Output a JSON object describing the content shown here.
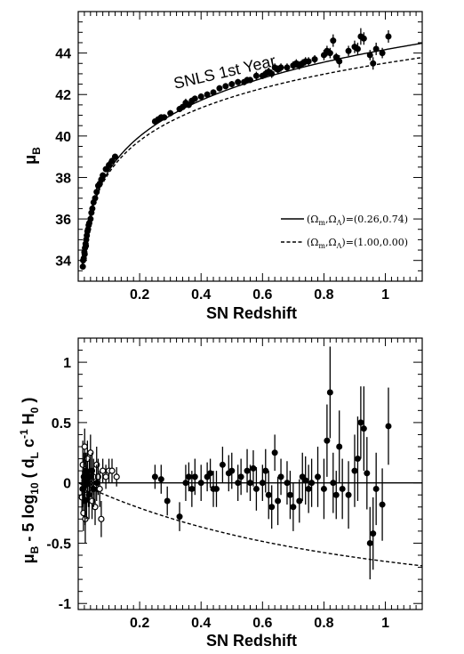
{
  "chart_data": [
    {
      "type": "scatter",
      "title": "",
      "xlabel": "SN Redshift",
      "ylabel_parts": {
        "base": "μ",
        "sub": "B"
      },
      "xlim": [
        0.0,
        1.12
      ],
      "ylim": [
        33.0,
        46.0
      ],
      "xticks": [
        0.2,
        0.4,
        0.6,
        0.8,
        1.0
      ],
      "xtick_labels": [
        "0.2",
        "0.4",
        "0.6",
        "0.8",
        "1"
      ],
      "yticks": [
        34,
        36,
        38,
        40,
        42,
        44
      ],
      "ytick_labels": [
        "34",
        "36",
        "38",
        "40",
        "42",
        "44"
      ],
      "annotation": "SNLS 1st Year",
      "legend_position": "lower-right",
      "legend": [
        {
          "style": "solid",
          "params": "(Ω",
          "sub1": "m",
          "comma": ",Ω",
          "sub2": "Λ",
          "value": ")=(0.26,0.74)"
        },
        {
          "style": "dashed",
          "params": "(Ω",
          "sub1": "m",
          "comma": ",Ω",
          "sub2": "Λ",
          "value": ")=(1.00,0.00)"
        }
      ],
      "series": [
        {
          "name": "(Ωm,ΩΛ)=(0.26,0.74)",
          "style": "solid",
          "omega_m": 0.26,
          "omega_l": 0.74
        },
        {
          "name": "(Ωm,ΩΛ)=(1.00,0.00)",
          "style": "dashed",
          "omega_m": 1.0,
          "omega_l": 0.0
        }
      ],
      "points": {
        "x": [
          0.015,
          0.016,
          0.018,
          0.02,
          0.021,
          0.022,
          0.024,
          0.025,
          0.026,
          0.028,
          0.03,
          0.032,
          0.034,
          0.036,
          0.04,
          0.043,
          0.046,
          0.05,
          0.055,
          0.06,
          0.065,
          0.07,
          0.075,
          0.08,
          0.09,
          0.1,
          0.11,
          0.12,
          0.25,
          0.26,
          0.27,
          0.28,
          0.3,
          0.33,
          0.34,
          0.35,
          0.36,
          0.37,
          0.38,
          0.4,
          0.42,
          0.44,
          0.46,
          0.48,
          0.5,
          0.52,
          0.54,
          0.55,
          0.56,
          0.58,
          0.6,
          0.61,
          0.62,
          0.63,
          0.64,
          0.65,
          0.66,
          0.68,
          0.7,
          0.71,
          0.72,
          0.73,
          0.74,
          0.75,
          0.77,
          0.8,
          0.81,
          0.82,
          0.83,
          0.84,
          0.85,
          0.88,
          0.9,
          0.91,
          0.92,
          0.93,
          0.95,
          0.96,
          0.97,
          0.99,
          1.01
        ],
        "y": [
          33.7,
          34.0,
          34.1,
          34.4,
          34.3,
          34.6,
          34.8,
          34.7,
          35.0,
          35.2,
          35.4,
          35.5,
          35.7,
          35.8,
          36.0,
          36.3,
          36.5,
          36.8,
          37.0,
          37.3,
          37.6,
          37.7,
          37.9,
          38.1,
          38.4,
          38.6,
          38.8,
          39.0,
          40.7,
          40.8,
          40.9,
          40.9,
          41.1,
          41.3,
          41.4,
          41.6,
          41.5,
          41.7,
          41.8,
          41.9,
          42.0,
          42.1,
          42.3,
          42.4,
          42.5,
          42.6,
          42.6,
          42.7,
          42.7,
          42.9,
          42.9,
          43.0,
          43.1,
          43.0,
          43.3,
          43.2,
          43.3,
          43.3,
          43.4,
          43.5,
          43.4,
          43.5,
          43.6,
          43.6,
          43.7,
          43.9,
          44.1,
          44.0,
          44.6,
          43.8,
          43.6,
          44.1,
          44.3,
          44.2,
          44.8,
          44.7,
          43.9,
          43.5,
          44.2,
          44.0,
          44.8
        ],
        "err": [
          0.15,
          0.15,
          0.18,
          0.15,
          0.2,
          0.2,
          0.15,
          0.2,
          0.18,
          0.2,
          0.2,
          0.15,
          0.2,
          0.15,
          0.2,
          0.2,
          0.18,
          0.15,
          0.15,
          0.2,
          0.15,
          0.2,
          0.15,
          0.15,
          0.15,
          0.2,
          0.15,
          0.15,
          0.15,
          0.15,
          0.15,
          0.15,
          0.15,
          0.15,
          0.15,
          0.2,
          0.15,
          0.15,
          0.15,
          0.15,
          0.15,
          0.15,
          0.15,
          0.15,
          0.15,
          0.15,
          0.15,
          0.15,
          0.15,
          0.2,
          0.15,
          0.2,
          0.2,
          0.2,
          0.2,
          0.2,
          0.2,
          0.2,
          0.2,
          0.2,
          0.2,
          0.2,
          0.2,
          0.2,
          0.2,
          0.25,
          0.25,
          0.25,
          0.3,
          0.2,
          0.3,
          0.25,
          0.3,
          0.3,
          0.4,
          0.3,
          0.25,
          0.3,
          0.3,
          0.25,
          0.3
        ]
      }
    },
    {
      "type": "scatter",
      "title": "",
      "xlabel": "SN Redshift",
      "ylabel_parts": {
        "p1": "μ",
        "p1sub": "B",
        "p2": " - 5 log",
        "p2sub": "10",
        "p3": " ( d",
        "p3sub": "L",
        "p4": " c",
        "p4sup": "-1",
        "p5": " H",
        "p5sub": "0",
        "p6": " )"
      },
      "xlim": [
        0.0,
        1.12
      ],
      "ylim": [
        -1.05,
        1.2
      ],
      "xticks": [
        0.2,
        0.4,
        0.6,
        0.8,
        1.0
      ],
      "xtick_labels": [
        "0.2",
        "0.4",
        "0.6",
        "0.8",
        "1"
      ],
      "yticks": [
        -1,
        -0.5,
        0,
        0.5,
        1
      ],
      "ytick_labels": [
        "-1",
        "-0.5",
        "0",
        "0.5",
        "1"
      ],
      "series": [
        {
          "name": "(Ωm,ΩΛ)=(0.26,0.74)",
          "style": "solid",
          "omega_m": 0.26,
          "omega_l": 0.74
        },
        {
          "name": "(Ωm,ΩΛ)=(1.00,0.00)",
          "style": "dashed",
          "omega_m": 1.0,
          "omega_l": 0.0
        }
      ],
      "open_points": {
        "x": [
          0.012,
          0.015,
          0.017,
          0.019,
          0.021,
          0.023,
          0.025,
          0.027,
          0.03,
          0.033,
          0.036,
          0.04,
          0.045,
          0.05,
          0.055,
          0.06,
          0.065,
          0.07,
          0.075,
          0.08,
          0.09,
          0.1,
          0.11,
          0.125
        ],
        "y": [
          -0.12,
          0.15,
          -0.25,
          0.05,
          0.3,
          -0.3,
          0.1,
          -0.1,
          0.2,
          -0.05,
          0.0,
          0.25,
          -0.15,
          0.05,
          -0.2,
          0.15,
          0.05,
          -0.05,
          -0.3,
          0.1,
          0.05,
          0.1,
          0.1,
          0.05
        ],
        "err": [
          0.15,
          0.2,
          0.15,
          0.2,
          0.15,
          0.2,
          0.15,
          0.2,
          0.15,
          0.15,
          0.2,
          0.15,
          0.15,
          0.15,
          0.15,
          0.15,
          0.15,
          0.15,
          0.15,
          0.1,
          0.1,
          0.1,
          0.1,
          0.08
        ]
      },
      "filled_points": {
        "x": [
          0.014,
          0.018,
          0.022,
          0.026,
          0.03,
          0.035,
          0.04,
          0.045,
          0.05,
          0.06,
          0.25,
          0.27,
          0.29,
          0.33,
          0.35,
          0.36,
          0.37,
          0.38,
          0.4,
          0.42,
          0.43,
          0.44,
          0.45,
          0.47,
          0.49,
          0.5,
          0.52,
          0.53,
          0.55,
          0.56,
          0.57,
          0.58,
          0.6,
          0.61,
          0.62,
          0.63,
          0.64,
          0.65,
          0.66,
          0.68,
          0.69,
          0.7,
          0.72,
          0.73,
          0.74,
          0.75,
          0.76,
          0.78,
          0.8,
          0.81,
          0.82,
          0.83,
          0.84,
          0.85,
          0.86,
          0.88,
          0.9,
          0.91,
          0.92,
          0.93,
          0.94,
          0.95,
          0.96,
          0.97,
          0.99,
          1.01
        ],
        "y": [
          -0.05,
          0.05,
          -0.15,
          0.1,
          0.0,
          -0.1,
          0.05,
          0.1,
          -0.05,
          0.0,
          0.05,
          0.03,
          -0.15,
          -0.28,
          0.0,
          0.05,
          -0.05,
          0.05,
          0.0,
          0.05,
          0.08,
          -0.05,
          -0.05,
          0.15,
          0.08,
          0.1,
          0.0,
          0.05,
          0.1,
          0.0,
          0.12,
          -0.05,
          0.0,
          0.1,
          -0.1,
          -0.2,
          0.25,
          -0.15,
          0.05,
          0.0,
          -0.1,
          -0.2,
          -0.15,
          0.05,
          0.02,
          -0.05,
          0.0,
          0.05,
          -0.05,
          0.35,
          0.75,
          0.0,
          -0.1,
          0.3,
          -0.05,
          -0.1,
          0.1,
          0.2,
          0.5,
          0.45,
          0.08,
          -0.5,
          -0.42,
          -0.05,
          -0.18,
          0.47
        ],
        "err": [
          0.15,
          0.15,
          0.2,
          0.15,
          0.15,
          0.2,
          0.15,
          0.15,
          0.15,
          0.15,
          0.1,
          0.12,
          0.12,
          0.12,
          0.15,
          0.12,
          0.15,
          0.15,
          0.15,
          0.12,
          0.12,
          0.15,
          0.15,
          0.15,
          0.15,
          0.15,
          0.15,
          0.15,
          0.18,
          0.15,
          0.15,
          0.18,
          0.15,
          0.18,
          0.2,
          0.18,
          0.15,
          0.2,
          0.15,
          0.18,
          0.2,
          0.2,
          0.18,
          0.2,
          0.2,
          0.2,
          0.2,
          0.25,
          0.25,
          0.3,
          0.38,
          0.25,
          0.2,
          0.3,
          0.25,
          0.28,
          0.3,
          0.35,
          0.3,
          0.35,
          0.3,
          0.3,
          0.3,
          0.3,
          0.3,
          0.32
        ]
      }
    }
  ]
}
